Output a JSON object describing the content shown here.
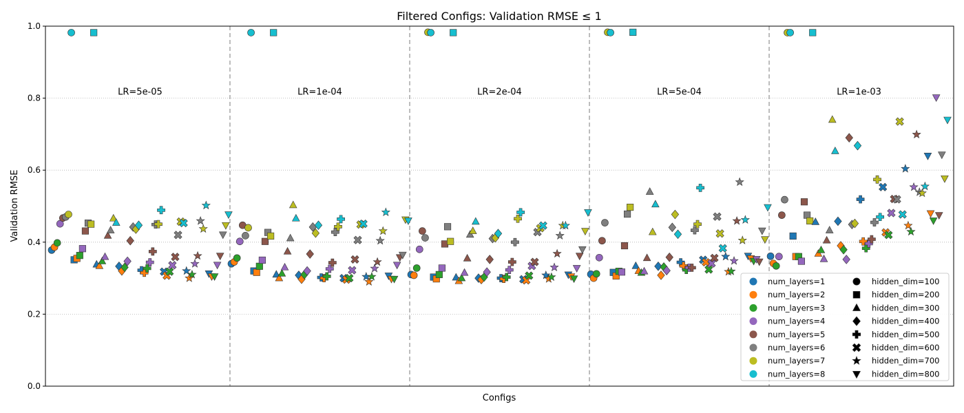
{
  "chart_data": {
    "type": "scatter",
    "title": "Filtered Configs: Validation RMSE ≤ 1",
    "xlabel": "Configs",
    "ylabel": "Validation RMSE",
    "ylim": [
      0,
      1.0
    ],
    "yticks": [
      "0.0",
      "0.2",
      "0.4",
      "0.6",
      "0.8",
      "1.0"
    ],
    "grid": "horizontal dotted",
    "legend_position": "lower-right",
    "x_encoding": "5 learning-rate groups x 8 hidden_dim x 8 num_layers (index 0-319)",
    "groups": [
      {
        "label": "LR=5e-05",
        "x_range": [
          0,
          63
        ]
      },
      {
        "label": "LR=1e-04",
        "x_range": [
          64,
          127
        ]
      },
      {
        "label": "LR=2e-04",
        "x_range": [
          128,
          191
        ]
      },
      {
        "label": "LR=5e-04",
        "x_range": [
          192,
          255
        ]
      },
      {
        "label": "LR=1e-03",
        "x_range": [
          256,
          319
        ]
      }
    ],
    "color_legend": [
      {
        "label": "num_layers=1",
        "color": "#1f77b4"
      },
      {
        "label": "num_layers=2",
        "color": "#ff7f0e"
      },
      {
        "label": "num_layers=3",
        "color": "#2ca02c"
      },
      {
        "label": "num_layers=4",
        "color": "#9467bd"
      },
      {
        "label": "num_layers=5",
        "color": "#8c564b"
      },
      {
        "label": "num_layers=6",
        "color": "#7f7f7f"
      },
      {
        "label": "num_layers=7",
        "color": "#bcbd22"
      },
      {
        "label": "num_layers=8",
        "color": "#17becf"
      }
    ],
    "marker_legend": [
      {
        "label": "hidden_dim=100",
        "marker": "circle"
      },
      {
        "label": "hidden_dim=200",
        "marker": "square"
      },
      {
        "label": "hidden_dim=300",
        "marker": "triangle-up"
      },
      {
        "label": "hidden_dim=400",
        "marker": "diamond"
      },
      {
        "label": "hidden_dim=500",
        "marker": "plus"
      },
      {
        "label": "hidden_dim=600",
        "marker": "x"
      },
      {
        "label": "hidden_dim=700",
        "marker": "star"
      },
      {
        "label": "hidden_dim=800",
        "marker": "triangle-down"
      }
    ],
    "series_values": [
      [
        [
          0.378,
          0.386,
          0.398,
          0.451,
          0.467,
          0.47,
          0.477,
          0.982
        ],
        [
          0.351,
          0.355,
          0.363,
          0.382,
          0.431,
          0.453,
          0.45,
          0.982
        ],
        [
          0.338,
          0.334,
          0.347,
          0.359,
          0.418,
          0.433,
          0.466,
          0.454
        ],
        [
          0.333,
          0.32,
          0.33,
          0.347,
          0.404,
          0.442,
          0.436,
          0.447
        ],
        [
          0.322,
          0.315,
          0.327,
          0.344,
          0.374,
          0.449,
          0.45,
          0.489
        ],
        [
          0.318,
          0.307,
          0.318,
          0.336,
          0.359,
          0.42,
          0.457,
          0.453
        ],
        [
          0.32,
          0.3,
          0.31,
          0.34,
          0.362,
          0.459,
          0.437,
          0.502
        ],
        [
          0.313,
          0.305,
          0.305,
          0.337,
          0.362,
          0.421,
          0.447,
          0.477
        ]
      ],
      [
        [
          0.34,
          0.345,
          0.356,
          0.402,
          0.447,
          0.418,
          0.44,
          0.982
        ],
        [
          0.32,
          0.316,
          0.333,
          0.35,
          0.402,
          0.427,
          0.417,
          0.982
        ],
        [
          0.31,
          0.3,
          0.313,
          0.33,
          0.374,
          0.411,
          0.503,
          0.466
        ],
        [
          0.308,
          0.297,
          0.31,
          0.32,
          0.367,
          0.442,
          0.425,
          0.447
        ],
        [
          0.302,
          0.3,
          0.305,
          0.326,
          0.343,
          0.428,
          0.443,
          0.464
        ],
        [
          0.3,
          0.296,
          0.3,
          0.322,
          0.352,
          0.406,
          0.449,
          0.451
        ],
        [
          0.304,
          0.29,
          0.304,
          0.327,
          0.345,
          0.404,
          0.431,
          0.483
        ],
        [
          0.307,
          0.298,
          0.298,
          0.337,
          0.358,
          0.365,
          0.463,
          0.46
        ]
      ],
      [
        [
          0.31,
          0.308,
          0.328,
          0.38,
          0.431,
          0.412,
          0.983,
          0.982
        ],
        [
          0.303,
          0.298,
          0.31,
          0.328,
          0.395,
          0.443,
          0.402,
          0.982
        ],
        [
          0.302,
          0.292,
          0.3,
          0.315,
          0.355,
          0.421,
          0.431,
          0.457
        ],
        [
          0.3,
          0.296,
          0.303,
          0.317,
          0.352,
          0.41,
          0.412,
          0.424
        ],
        [
          0.3,
          0.298,
          0.303,
          0.323,
          0.345,
          0.4,
          0.465,
          0.483
        ],
        [
          0.297,
          0.294,
          0.307,
          0.334,
          0.345,
          0.428,
          0.439,
          0.446
        ],
        [
          0.308,
          0.298,
          0.303,
          0.33,
          0.368,
          0.418,
          0.446,
          0.446
        ],
        [
          0.31,
          0.305,
          0.299,
          0.328,
          0.362,
          0.38,
          0.431,
          0.483
        ]
      ],
      [
        [
          0.311,
          0.3,
          0.312,
          0.357,
          0.404,
          0.454,
          0.983,
          0.982
        ],
        [
          0.316,
          0.306,
          0.319,
          0.317,
          0.39,
          0.478,
          0.497,
          0.983
        ],
        [
          0.334,
          0.32,
          0.315,
          0.319,
          0.356,
          0.54,
          0.428,
          0.505
        ],
        [
          0.333,
          0.308,
          0.331,
          0.321,
          0.358,
          0.441,
          0.477,
          0.422
        ],
        [
          0.344,
          0.334,
          0.323,
          0.329,
          0.329,
          0.433,
          0.45,
          0.551
        ],
        [
          0.351,
          0.344,
          0.324,
          0.341,
          0.356,
          0.471,
          0.424,
          0.383
        ],
        [
          0.36,
          0.318,
          0.319,
          0.348,
          0.459,
          0.567,
          0.405,
          0.462
        ],
        [
          0.362,
          0.355,
          0.348,
          0.353,
          0.346,
          0.432,
          0.408,
          0.497
        ]
      ],
      [
        [
          0.361,
          0.341,
          0.334,
          0.36,
          0.475,
          0.518,
          0.982,
          0.982
        ],
        [
          0.417,
          0.36,
          0.36,
          0.347,
          0.512,
          0.475,
          0.459,
          0.982
        ],
        [
          0.456,
          0.368,
          0.378,
          0.353,
          0.405,
          0.433,
          0.74,
          0.653
        ],
        [
          0.458,
          0.39,
          0.379,
          0.352,
          0.69,
          0.449,
          0.452,
          0.668
        ],
        [
          0.519,
          0.402,
          0.383,
          0.396,
          0.408,
          0.455,
          0.574,
          0.47
        ],
        [
          0.553,
          0.427,
          0.42,
          0.481,
          0.52,
          0.519,
          0.735,
          0.477
        ],
        [
          0.604,
          0.446,
          0.429,
          0.553,
          0.699,
          0.539,
          0.536,
          0.555
        ],
        [
          0.64,
          0.48,
          0.46,
          0.802,
          0.475,
          0.643,
          0.577,
          0.74
        ]
      ]
    ]
  }
}
